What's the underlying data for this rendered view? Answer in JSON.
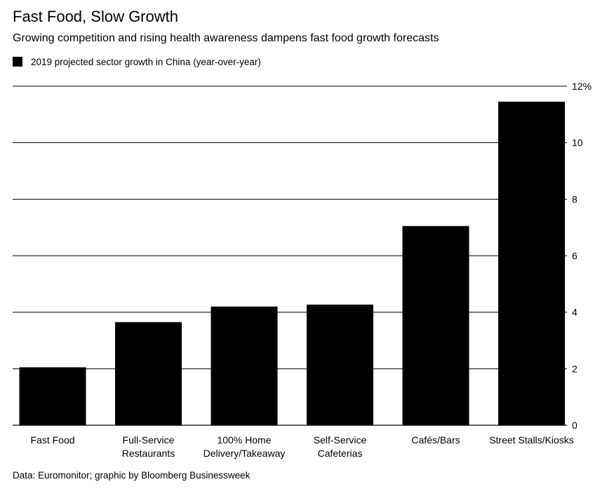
{
  "header": {
    "title": "Fast Food, Slow Growth",
    "subtitle": "Growing competition and rising health awareness dampens fast food growth forecasts"
  },
  "legend": {
    "label": "2019 projected sector growth in China (year-over-year)"
  },
  "footer": {
    "source": "Data: Euromonitor; graphic by Bloomberg Businessweek"
  },
  "chart_data": {
    "type": "bar",
    "title": "Fast Food, Slow Growth",
    "subtitle": "Growing competition and rising health awareness dampens fast food growth forecasts",
    "categories": [
      [
        "Fast Food"
      ],
      [
        "Full-Service",
        "Restaurants"
      ],
      [
        "100% Home",
        "Delivery/Takeaway"
      ],
      [
        "Self-Service",
        "Cafeterias"
      ],
      [
        "Cafés/Bars"
      ],
      [
        "Street Stalls/Kiosks"
      ]
    ],
    "series": [
      {
        "name": "2019 projected sector growth in China (year-over-year)",
        "values": [
          2.05,
          3.65,
          4.2,
          4.27,
          7.05,
          11.45
        ],
        "color": "#000000"
      }
    ],
    "ylim": [
      0,
      12
    ],
    "yticks": [
      {
        "value": 0,
        "label": "0"
      },
      {
        "value": 2,
        "label": "2"
      },
      {
        "value": 4,
        "label": "4"
      },
      {
        "value": 6,
        "label": "6"
      },
      {
        "value": 8,
        "label": "8"
      },
      {
        "value": 10,
        "label": "10"
      },
      {
        "value": 12,
        "label": "12%"
      }
    ],
    "y_axis_side": "right",
    "grid": true,
    "legend_position": "top-left"
  }
}
